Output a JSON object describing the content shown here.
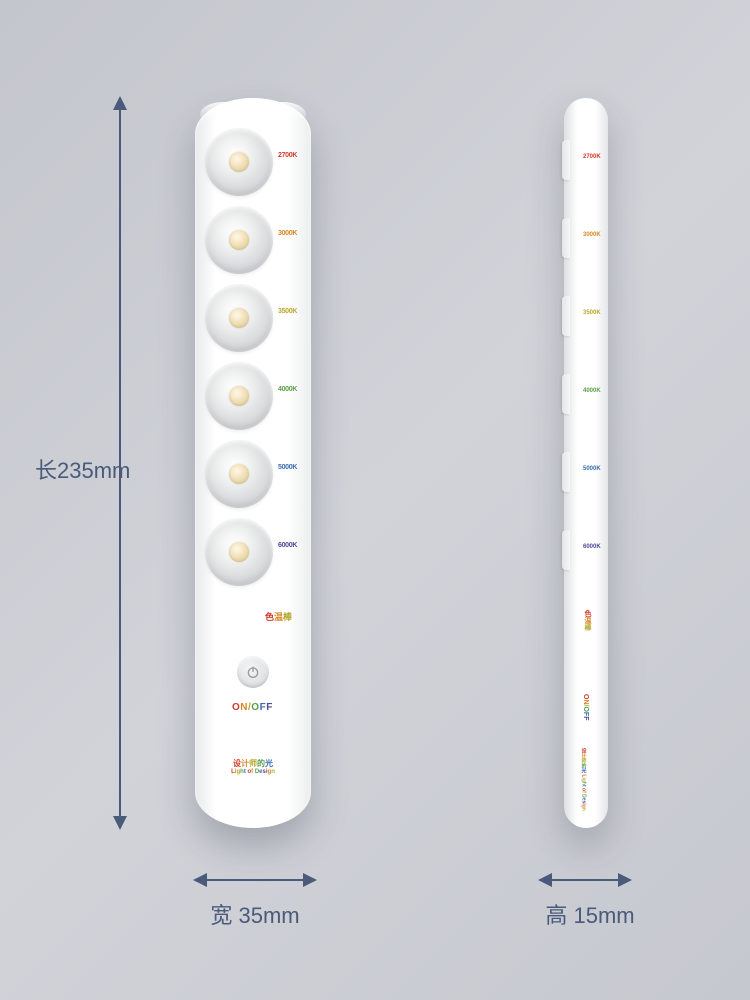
{
  "dimensions": {
    "length_label": "长235mm",
    "width_label": "宽  35mm",
    "height_label": "高  15mm",
    "arrow_color": "#4a5a7a",
    "label_fontsize": 22
  },
  "background_color": "#caccd2",
  "device": {
    "body_color": "#ffffff",
    "shadow_color": "rgba(40,45,60,0.28)",
    "leds": [
      {
        "k_label": "2700K",
        "k_color": "#d13a2a"
      },
      {
        "k_label": "3000K",
        "k_color": "#d6862a"
      },
      {
        "k_label": "3500K",
        "k_color": "#b8a82e"
      },
      {
        "k_label": "4000K",
        "k_color": "#5a9e48"
      },
      {
        "k_label": "5000K",
        "k_color": "#3a6db0"
      },
      {
        "k_label": "6000K",
        "k_color": "#4a4a9a"
      }
    ],
    "center_label": "色温棒",
    "onoff_label": "ON/OFF",
    "brand_cn": "设计师的光",
    "brand_en": "Light of Design"
  }
}
